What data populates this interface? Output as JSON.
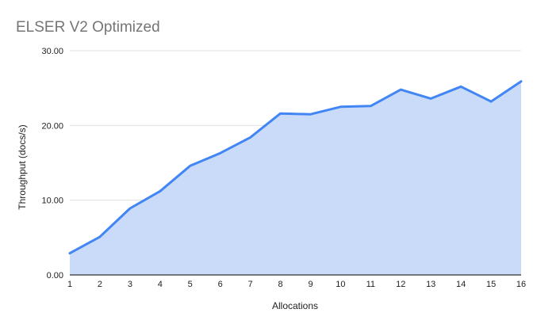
{
  "chart_data": {
    "type": "area",
    "title": "ELSER V2 Optimized",
    "xlabel": "Allocations",
    "ylabel": "Throughput (docs/s)",
    "x": [
      1,
      2,
      3,
      4,
      5,
      6,
      7,
      8,
      9,
      10,
      11,
      12,
      13,
      14,
      15,
      16
    ],
    "values": [
      2.9,
      5.1,
      8.9,
      11.2,
      14.6,
      16.3,
      18.4,
      21.6,
      21.5,
      22.5,
      22.6,
      24.8,
      23.6,
      25.2,
      23.2,
      25.9
    ],
    "ylim": [
      0,
      30
    ],
    "y_ticks": [
      {
        "value": 0,
        "label": "0.00"
      },
      {
        "value": 10,
        "label": "10.00"
      },
      {
        "value": 20,
        "label": "20.00"
      },
      {
        "value": 30,
        "label": "30.00"
      }
    ],
    "grid": true,
    "legend": "none"
  },
  "colors": {
    "line": "#4285f4",
    "fill": "#c9dbf8",
    "grid": "#e0e0e0",
    "axis_line": "#333333",
    "title_text": "#757575",
    "axis_title_text": "#222222",
    "tick_text": "#222222",
    "background": "#ffffff"
  }
}
